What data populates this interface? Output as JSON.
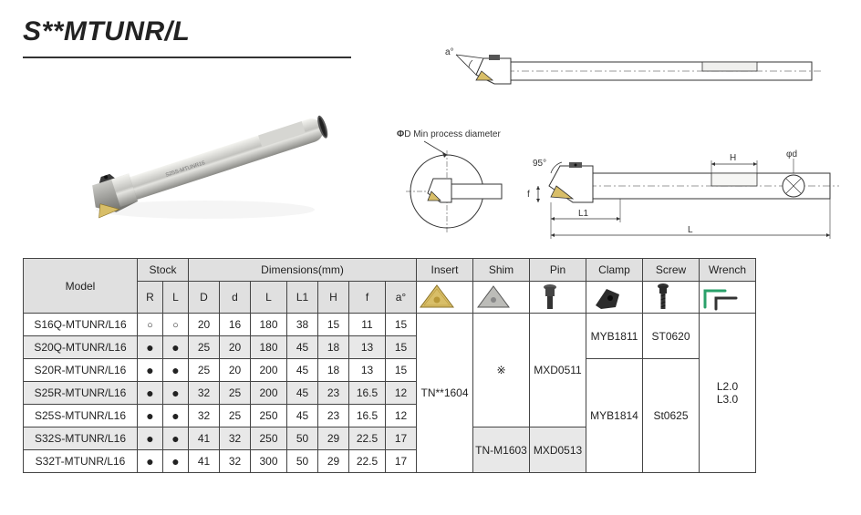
{
  "title": "S**MTUNR/L",
  "labels": {
    "min_proc": "D Min process diameter",
    "phi": "Φ"
  },
  "header": {
    "model": "Model",
    "stock": "Stock",
    "dims": "Dimensions(mm)",
    "insert": "Insert",
    "shim": "Shim",
    "pin": "Pin",
    "clamp": "Clamp",
    "screw": "Screw",
    "wrench": "Wrench",
    "stock_R": "R",
    "stock_L": "L",
    "D": "D",
    "d": "d",
    "L": "L",
    "L1": "L1",
    "H": "H",
    "f": "f",
    "a": "a°"
  },
  "rows": [
    {
      "model": "S16Q-MTUNR/L16",
      "R": "○",
      "L": "○",
      "D": "20",
      "d": "16",
      "Ln": "180",
      "L1": "38",
      "H": "15",
      "f": "11",
      "a": "15",
      "alt": false
    },
    {
      "model": "S20Q-MTUNR/L16",
      "R": "●",
      "L": "●",
      "D": "25",
      "d": "20",
      "Ln": "180",
      "L1": "45",
      "H": "18",
      "f": "13",
      "a": "15",
      "alt": true
    },
    {
      "model": "S20R-MTUNR/L16",
      "R": "●",
      "L": "●",
      "D": "25",
      "d": "20",
      "Ln": "200",
      "L1": "45",
      "H": "18",
      "f": "13",
      "a": "15",
      "alt": false
    },
    {
      "model": "S25R-MTUNR/L16",
      "R": "●",
      "L": "●",
      "D": "32",
      "d": "25",
      "Ln": "200",
      "L1": "45",
      "H": "23",
      "f": "16.5",
      "a": "12",
      "alt": true
    },
    {
      "model": "S25S-MTUNR/L16",
      "R": "●",
      "L": "●",
      "D": "32",
      "d": "25",
      "Ln": "250",
      "L1": "45",
      "H": "23",
      "f": "16.5",
      "a": "12",
      "alt": false
    },
    {
      "model": "S32S-MTUNR/L16",
      "R": "●",
      "L": "●",
      "D": "41",
      "d": "32",
      "Ln": "250",
      "L1": "50",
      "H": "29",
      "f": "22.5",
      "a": "17",
      "alt": true
    },
    {
      "model": "S32T-MTUNR/L16",
      "R": "●",
      "L": "●",
      "D": "41",
      "d": "32",
      "Ln": "300",
      "L1": "50",
      "H": "29",
      "f": "22.5",
      "a": "17",
      "alt": false
    }
  ],
  "parts": {
    "insert": "TN**1604",
    "shim1": "※",
    "shim2": "TN-M1603",
    "pin1": "MXD0511",
    "pin2": "MXD0513",
    "clamp1": "MYB1811",
    "clamp2": "MYB1814",
    "screw1": "ST0620",
    "screw2": "St0625",
    "wrench": "L2.0\nL3.0"
  },
  "dim_labels": {
    "angle_a": "a°",
    "L": "L",
    "L1": "L1",
    "H": "H",
    "f": "f",
    "d": "d",
    "phid": "φd",
    "angle95": "95°"
  },
  "colors": {
    "bg": "#ffffff",
    "header_bg": "#e0e0e0",
    "alt_bg": "#e8e8e8",
    "border": "#444444",
    "text": "#222222",
    "metal_light": "#d8d8d6",
    "metal_mid": "#b8b8b4",
    "metal_dark": "#888884",
    "insert_gold": "#d8be68",
    "insert_gold_dark": "#b89838",
    "line": "#333333"
  }
}
